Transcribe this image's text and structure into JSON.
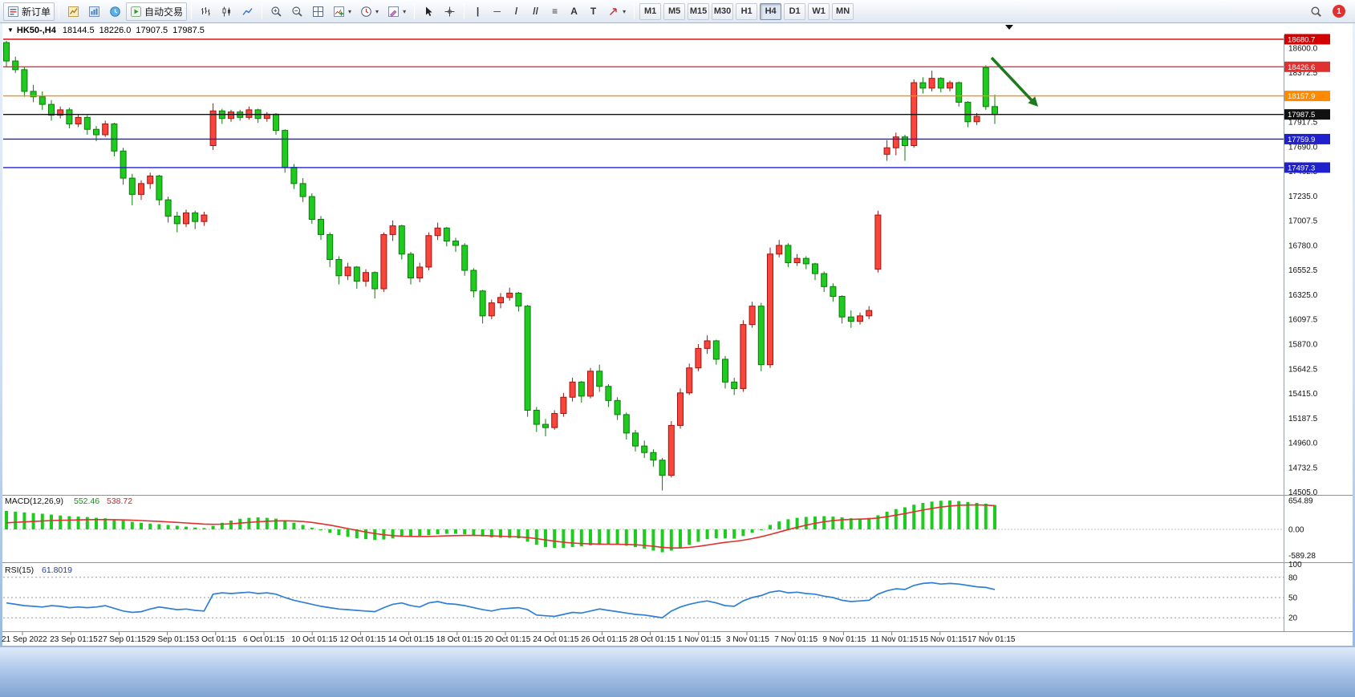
{
  "toolbar": {
    "new_order_label": "新订单",
    "auto_trading_label": "自动交易",
    "timeframes": [
      "M1",
      "M5",
      "M15",
      "M30",
      "H1",
      "H4",
      "D1",
      "W1",
      "MN"
    ],
    "active_timeframe": "H4",
    "notification_count": "1"
  },
  "icons": {
    "collapse_glyph": "▼",
    "caret_glyph": "▾",
    "vline_glyph": "|",
    "hline_glyph": "─",
    "trendline_glyph": "/",
    "channel_glyph": "//",
    "fibonacci_glyph": "≡",
    "text_glyph": "A",
    "text_label_glyph": "T"
  },
  "chart": {
    "title": "HK50-,H4",
    "open": "18144.5",
    "high": "18226.0",
    "low": "17907.5",
    "close": "17987.5"
  },
  "chart_data": [
    {
      "type": "candlestick",
      "symbol": "HK50-",
      "period": "H4",
      "up_color": "#f8463c",
      "down_color": "#1ecb1e",
      "ylim": [
        14487,
        18717
      ],
      "y_axis_labels": [
        "18600.0",
        "18372.5",
        "18145.0",
        "17917.5",
        "17690.0",
        "17462.5",
        "17235.0",
        "17007.5",
        "16780.0",
        "16552.5",
        "16325.0",
        "16097.5",
        "15870.0",
        "15642.5",
        "15415.0",
        "15187.5",
        "14960.0",
        "14732.5",
        "14505.0"
      ],
      "x_labels": [
        "21 Sep 2022",
        "23 Sep 01:15",
        "27 Sep 01:15",
        "29 Sep 01:15",
        "3 Oct 01:15",
        "6 Oct 01:15",
        "10 Oct 01:15",
        "12 Oct 01:15",
        "14 Oct 01:15",
        "18 Oct 01:15",
        "20 Oct 01:15",
        "24 Oct 01:15",
        "26 Oct 01:15",
        "28 Oct 01:15",
        "1 Nov 01:15",
        "3 Nov 01:15",
        "7 Nov 01:15",
        "9 Nov 01:15",
        "11 Nov 01:15",
        "15 Nov 01:15",
        "17 Nov 01:15"
      ],
      "levels": [
        {
          "price": 18680.7,
          "label": "18680.7",
          "color": "#d20000"
        },
        {
          "price": 18426.6,
          "label": "18426.6",
          "color": "#e03030"
        },
        {
          "price": 18157.9,
          "label": "18157.9",
          "color": "#ff8a00"
        },
        {
          "price": 17987.5,
          "label": "17987.5",
          "color": "#111111"
        },
        {
          "price": 17759.9,
          "label": "17759.9",
          "color": "#2020cc"
        },
        {
          "price": 17497.3,
          "label": "17497.3",
          "color": "#2020cc"
        }
      ],
      "arrow_annotation": {
        "color": "#1e7a1e",
        "direction": "down-right"
      },
      "candles": [
        [
          18650,
          18665,
          18420,
          18480
        ],
        [
          18480,
          18520,
          18370,
          18400
        ],
        [
          18400,
          18430,
          18150,
          18200
        ],
        [
          18200,
          18260,
          18100,
          18150
        ],
        [
          18150,
          18200,
          18030,
          18080
        ],
        [
          18080,
          18120,
          17930,
          17980
        ],
        [
          17980,
          18060,
          17950,
          18030
        ],
        [
          18030,
          18050,
          17860,
          17900
        ],
        [
          17900,
          17990,
          17870,
          17960
        ],
        [
          17960,
          17980,
          17800,
          17850
        ],
        [
          17850,
          17880,
          17740,
          17800
        ],
        [
          17800,
          17930,
          17780,
          17900
        ],
        [
          17900,
          17910,
          17600,
          17650
        ],
        [
          17650,
          17680,
          17340,
          17400
        ],
        [
          17400,
          17440,
          17150,
          17250
        ],
        [
          17250,
          17380,
          17200,
          17350
        ],
        [
          17350,
          17450,
          17300,
          17420
        ],
        [
          17420,
          17430,
          17150,
          17200
        ],
        [
          17200,
          17230,
          16990,
          17050
        ],
        [
          17050,
          17090,
          16900,
          16980
        ],
        [
          16980,
          17110,
          16950,
          17080
        ],
        [
          17080,
          17100,
          16930,
          17000
        ],
        [
          17000,
          17090,
          16960,
          17060
        ],
        [
          17700,
          18090,
          17660,
          18020
        ],
        [
          18020,
          18040,
          17900,
          17950
        ],
        [
          17950,
          18030,
          17920,
          18010
        ],
        [
          18010,
          18030,
          17930,
          17960
        ],
        [
          17960,
          18060,
          17940,
          18030
        ],
        [
          18030,
          18040,
          17910,
          17950
        ],
        [
          17950,
          18010,
          17920,
          17990
        ],
        [
          17990,
          18000,
          17800,
          17840
        ],
        [
          17840,
          17850,
          17450,
          17500
        ],
        [
          17500,
          17530,
          17300,
          17350
        ],
        [
          17350,
          17400,
          17180,
          17230
        ],
        [
          17230,
          17260,
          16980,
          17020
        ],
        [
          17020,
          17050,
          16830,
          16880
        ],
        [
          16880,
          16900,
          16580,
          16650
        ],
        [
          16650,
          16680,
          16420,
          16500
        ],
        [
          16500,
          16620,
          16460,
          16580
        ],
        [
          16580,
          16590,
          16380,
          16450
        ],
        [
          16450,
          16560,
          16400,
          16530
        ],
        [
          16530,
          16540,
          16290,
          16380
        ],
        [
          16380,
          16900,
          16350,
          16880
        ],
        [
          16880,
          17010,
          16820,
          16960
        ],
        [
          16960,
          16970,
          16650,
          16700
        ],
        [
          16700,
          16720,
          16420,
          16480
        ],
        [
          16480,
          16620,
          16440,
          16580
        ],
        [
          16580,
          16900,
          16550,
          16870
        ],
        [
          16870,
          16990,
          16830,
          16940
        ],
        [
          16940,
          16950,
          16770,
          16820
        ],
        [
          16820,
          16850,
          16720,
          16780
        ],
        [
          16780,
          16800,
          16500,
          16550
        ],
        [
          16550,
          16570,
          16300,
          16360
        ],
        [
          16360,
          16370,
          16060,
          16130
        ],
        [
          16130,
          16280,
          16100,
          16250
        ],
        [
          16250,
          16340,
          16200,
          16300
        ],
        [
          16300,
          16390,
          16270,
          16340
        ],
        [
          16340,
          16350,
          16170,
          16220
        ],
        [
          16220,
          16230,
          15200,
          15260
        ],
        [
          15260,
          15290,
          15060,
          15130
        ],
        [
          15130,
          15180,
          15020,
          15100
        ],
        [
          15100,
          15260,
          15080,
          15230
        ],
        [
          15230,
          15420,
          15200,
          15380
        ],
        [
          15380,
          15560,
          15340,
          15520
        ],
        [
          15520,
          15530,
          15330,
          15390
        ],
        [
          15390,
          15650,
          15370,
          15620
        ],
        [
          15620,
          15680,
          15430,
          15480
        ],
        [
          15480,
          15500,
          15290,
          15350
        ],
        [
          15350,
          15380,
          15170,
          15220
        ],
        [
          15220,
          15240,
          14990,
          15050
        ],
        [
          15050,
          15080,
          14880,
          14930
        ],
        [
          14930,
          14980,
          14820,
          14870
        ],
        [
          14870,
          14900,
          14740,
          14800
        ],
        [
          14800,
          14820,
          14520,
          14660
        ],
        [
          14660,
          15160,
          14640,
          15120
        ],
        [
          15120,
          15460,
          15090,
          15420
        ],
        [
          15420,
          15690,
          15400,
          15650
        ],
        [
          15650,
          15870,
          15620,
          15830
        ],
        [
          15830,
          15950,
          15780,
          15900
        ],
        [
          15900,
          15910,
          15680,
          15730
        ],
        [
          15730,
          15760,
          15460,
          15520
        ],
        [
          15520,
          15560,
          15400,
          15460
        ],
        [
          15460,
          16090,
          15430,
          16050
        ],
        [
          16050,
          16260,
          16020,
          16220
        ],
        [
          16220,
          16250,
          15620,
          15680
        ],
        [
          15680,
          16760,
          15650,
          16700
        ],
        [
          16700,
          16830,
          16670,
          16780
        ],
        [
          16780,
          16800,
          16580,
          16620
        ],
        [
          16620,
          16700,
          16590,
          16660
        ],
        [
          16660,
          16680,
          16560,
          16610
        ],
        [
          16610,
          16620,
          16460,
          16520
        ],
        [
          16520,
          16540,
          16350,
          16400
        ],
        [
          16400,
          16430,
          16260,
          16310
        ],
        [
          16310,
          16320,
          16060,
          16120
        ],
        [
          16120,
          16180,
          16020,
          16080
        ],
        [
          16080,
          16160,
          16050,
          16130
        ],
        [
          16130,
          16220,
          16100,
          16180
        ],
        [
          16560,
          17100,
          16530,
          17060
        ],
        [
          17620,
          17750,
          17560,
          17680
        ],
        [
          17680,
          17820,
          17610,
          17780
        ],
        [
          17780,
          17800,
          17560,
          17700
        ],
        [
          17700,
          18310,
          17680,
          18280
        ],
        [
          18280,
          18330,
          18180,
          18230
        ],
        [
          18230,
          18390,
          18200,
          18320
        ],
        [
          18320,
          18330,
          18190,
          18230
        ],
        [
          18230,
          18300,
          18200,
          18280
        ],
        [
          18280,
          18290,
          18060,
          18100
        ],
        [
          18100,
          18110,
          17870,
          17920
        ],
        [
          17920,
          18000,
          17890,
          17970
        ],
        [
          18420,
          18440,
          18030,
          18060
        ],
        [
          18060,
          18170,
          17900,
          17987.5
        ]
      ]
    },
    {
      "type": "bar",
      "name": "MACD",
      "label": "MACD(12,26,9)",
      "value_main": "552.46",
      "value_signal": "538.72",
      "histogram_color": "#1ecb1e",
      "signal_color": "#e03131",
      "ylim": [
        -660,
        660
      ],
      "y_axis_labels": [
        "654.89",
        "0.00",
        "-589.28"
      ],
      "values": [
        420,
        400,
        385,
        370,
        355,
        335,
        315,
        300,
        290,
        280,
        262,
        250,
        230,
        202,
        172,
        150,
        132,
        118,
        100,
        82,
        62,
        42,
        30,
        80,
        150,
        200,
        240,
        262,
        272,
        262,
        242,
        202,
        152,
        100,
        40,
        -20,
        -80,
        -130,
        -170,
        -200,
        -222,
        -240,
        -230,
        -202,
        -172,
        -160,
        -150,
        -132,
        -112,
        -100,
        -100,
        -112,
        -132,
        -160,
        -182,
        -190,
        -192,
        -200,
        -280,
        -350,
        -402,
        -420,
        -422,
        -402,
        -382,
        -362,
        -350,
        -342,
        -352,
        -372,
        -402,
        -440,
        -482,
        -520,
        -482,
        -422,
        -352,
        -282,
        -222,
        -200,
        -202,
        -210,
        -152,
        -80,
        0,
        100,
        180,
        230,
        262,
        282,
        290,
        300,
        290,
        272,
        252,
        240,
        262,
        320,
        400,
        460,
        500,
        560,
        600,
        630,
        650,
        655,
        642,
        622,
        602,
        582,
        552.46
      ],
      "signal": [
        150,
        160,
        170,
        180,
        190,
        200,
        205,
        210,
        215,
        220,
        222,
        222,
        220,
        215,
        208,
        200,
        190,
        180,
        170,
        158,
        145,
        132,
        120,
        115,
        118,
        128,
        142,
        158,
        172,
        184,
        192,
        195,
        190,
        178,
        158,
        130,
        96,
        58,
        18,
        -22,
        -60,
        -95,
        -122,
        -142,
        -154,
        -160,
        -162,
        -160,
        -155,
        -148,
        -142,
        -138,
        -137,
        -140,
        -147,
        -155,
        -163,
        -170,
        -185,
        -210,
        -240,
        -268,
        -292,
        -310,
        -322,
        -330,
        -334,
        -336,
        -338,
        -342,
        -350,
        -364,
        -384,
        -408,
        -422,
        -422,
        -410,
        -386,
        -356,
        -324,
        -295,
        -272,
        -245,
        -210,
        -168,
        -116,
        -60,
        -5,
        48,
        95,
        138,
        172,
        198,
        216,
        226,
        232,
        240,
        258,
        288,
        322,
        358,
        398,
        438,
        475,
        506,
        530,
        545,
        552,
        554,
        550,
        538.72
      ]
    },
    {
      "type": "line",
      "name": "RSI",
      "label": "RSI(15)",
      "value": "61.8019",
      "line_color": "#2f7fd6",
      "ylim": [
        0,
        100
      ],
      "levels": [
        80,
        50,
        20
      ],
      "y_axis_labels": [
        "100",
        "80",
        "50",
        "20"
      ],
      "values": [
        42,
        40,
        38,
        37,
        36,
        38,
        37,
        35,
        36,
        35,
        36,
        38,
        34,
        30,
        28,
        29,
        33,
        36,
        34,
        32,
        33,
        31,
        30,
        55,
        57,
        56,
        57,
        58,
        56,
        57,
        55,
        50,
        46,
        43,
        40,
        37,
        35,
        33,
        32,
        31,
        30,
        29,
        35,
        40,
        42,
        38,
        36,
        42,
        44,
        41,
        40,
        38,
        35,
        32,
        30,
        33,
        34,
        35,
        32,
        24,
        23,
        22,
        25,
        28,
        27,
        30,
        33,
        31,
        29,
        27,
        25,
        24,
        22,
        20,
        30,
        36,
        40,
        43,
        45,
        42,
        38,
        37,
        45,
        50,
        53,
        58,
        60,
        57,
        58,
        56,
        55,
        52,
        50,
        46,
        44,
        45,
        46,
        55,
        60,
        63,
        62,
        68,
        71,
        72,
        70,
        71,
        70,
        68,
        66,
        65,
        61.8
      ]
    }
  ]
}
